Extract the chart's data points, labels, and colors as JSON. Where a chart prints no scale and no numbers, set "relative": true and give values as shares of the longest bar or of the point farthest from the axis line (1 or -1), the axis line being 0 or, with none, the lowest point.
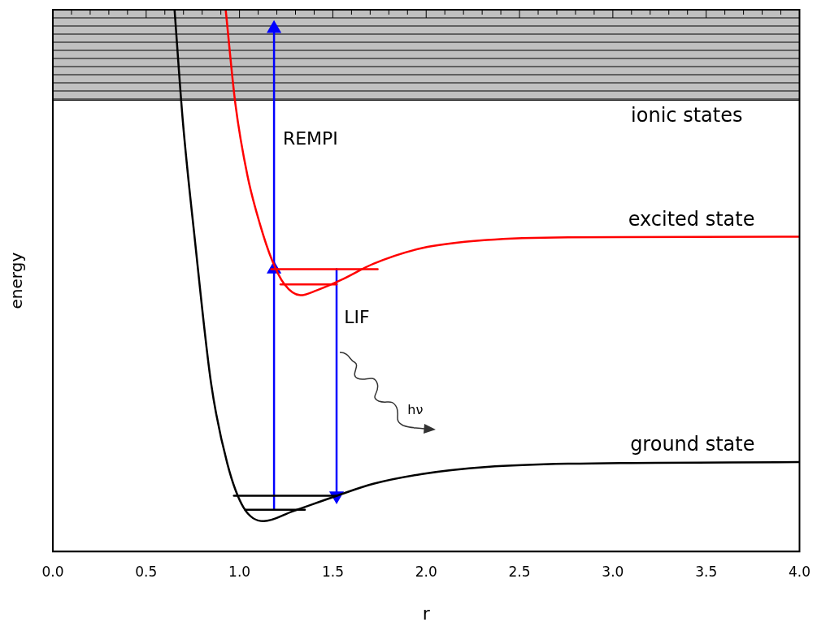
{
  "chart_data": {
    "type": "line",
    "relative": true,
    "xlabel": "r",
    "ylabel": "energy",
    "xlim": [
      0,
      4
    ],
    "xticks": [
      {
        "value": 0,
        "label": "0.0"
      },
      {
        "value": 0.1,
        "label": null
      },
      {
        "value": 0.2,
        "label": null
      },
      {
        "value": 0.3,
        "label": null
      },
      {
        "value": 0.4,
        "label": null
      },
      {
        "value": 0.5,
        "label": "0.5"
      },
      {
        "value": 0.6,
        "label": null
      },
      {
        "value": 0.7,
        "label": null
      },
      {
        "value": 0.8,
        "label": null
      },
      {
        "value": 0.9,
        "label": null
      },
      {
        "value": 1,
        "label": "1.0"
      },
      {
        "value": 1.1,
        "label": null
      },
      {
        "value": 1.2,
        "label": null
      },
      {
        "value": 1.3,
        "label": null
      },
      {
        "value": 1.4,
        "label": null
      },
      {
        "value": 1.5,
        "label": "1.5"
      },
      {
        "value": 1.6,
        "label": null
      },
      {
        "value": 1.7,
        "label": null
      },
      {
        "value": 1.8,
        "label": null
      },
      {
        "value": 1.9,
        "label": null
      },
      {
        "value": 2,
        "label": "2.0"
      },
      {
        "value": 2.1,
        "label": null
      },
      {
        "value": 2.2,
        "label": null
      },
      {
        "value": 2.3,
        "label": null
      },
      {
        "value": 2.4,
        "label": null
      },
      {
        "value": 2.5,
        "label": "2.5"
      },
      {
        "value": 2.6,
        "label": null
      },
      {
        "value": 2.7,
        "label": null
      },
      {
        "value": 2.8,
        "label": null
      },
      {
        "value": 2.9,
        "label": null
      },
      {
        "value": 3,
        "label": "3.0"
      },
      {
        "value": 3.1,
        "label": null
      },
      {
        "value": 3.2,
        "label": null
      },
      {
        "value": 3.3,
        "label": null
      },
      {
        "value": 3.4,
        "label": null
      },
      {
        "value": 3.5,
        "label": "3.5"
      },
      {
        "value": 3.6,
        "label": null
      },
      {
        "value": 3.7,
        "label": null
      },
      {
        "value": 3.8,
        "label": null
      },
      {
        "value": 3.9,
        "label": null
      },
      {
        "value": 4,
        "label": "4.0"
      }
    ],
    "legend": false,
    "grid": false,
    "marker": "none",
    "line_style": "solid",
    "series": [
      {
        "name": "ground state",
        "color": "#000000",
        "x": [
          0.652,
          0.696,
          0.761,
          0.848,
          0.935,
          1.022,
          1.13,
          1.283,
          1.522,
          1.717,
          1.978,
          2.326,
          2.761,
          4.0
        ],
        "values": [
          1.0,
          0.796,
          0.575,
          0.31,
          0.162,
          0.081,
          0.056,
          0.074,
          0.103,
          0.125,
          0.143,
          0.156,
          0.162,
          0.165
        ]
      },
      {
        "name": "excited state",
        "color": "#ff0000",
        "x": [
          0.926,
          0.978,
          1.043,
          1.109,
          1.174,
          1.239,
          1.326,
          1.413,
          1.543,
          1.717,
          1.978,
          2.326,
          2.761,
          4.0
        ],
        "values": [
          1.0,
          0.826,
          0.693,
          0.605,
          0.538,
          0.494,
          0.473,
          0.482,
          0.501,
          0.531,
          0.56,
          0.575,
          0.58,
          0.581
        ]
      },
      {
        "color": "#000000",
        "x": [
          0.97,
          1.52
        ],
        "values": [
          0.103,
          0.103
        ]
      },
      {
        "color": "#000000",
        "x": [
          1.03,
          1.35
        ],
        "values": [
          0.077,
          0.077
        ]
      },
      {
        "color": "#ff0000",
        "x": [
          1.17,
          1.74
        ],
        "values": [
          0.521,
          0.521
        ]
      },
      {
        "color": "#ff0000",
        "x": [
          1.22,
          1.52
        ],
        "values": [
          0.493,
          0.493
        ]
      },
      {
        "color": "#0000ff",
        "marker": "triangle",
        "x": [
          1.185,
          1.185
        ],
        "values": [
          0.077,
          0.521
        ]
      },
      {
        "color": "#0000ff",
        "marker": "triangle",
        "x": [
          1.185,
          1.185
        ],
        "values": [
          0.521,
          0.965
        ]
      },
      {
        "color": "#0000ff",
        "marker": "triangle",
        "x": [
          1.52,
          1.52
        ],
        "values": [
          0.521,
          0.103
        ]
      }
    ],
    "bands": [
      {
        "axis": "y",
        "from": 0.833,
        "to": 1.0,
        "label": "ionic states",
        "color": "#c0c0c0"
      }
    ],
    "annotations": [
      "REMPI",
      "LIF",
      "hν"
    ]
  }
}
